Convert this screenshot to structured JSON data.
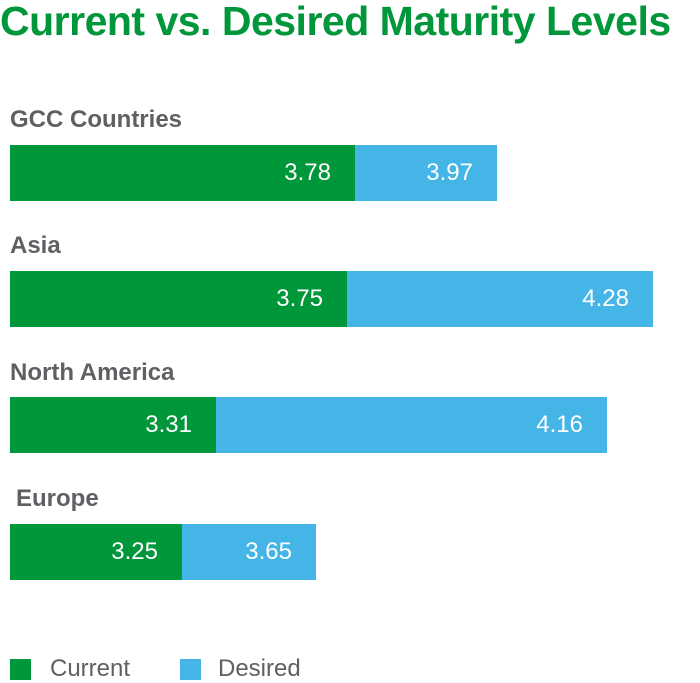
{
  "chart_data": {
    "type": "bar",
    "orientation": "horizontal",
    "stacked_display": true,
    "title": "Current vs. Desired Maturity Levels",
    "xlabel": "",
    "ylabel": "",
    "grid": false,
    "legend_position": "bottom-left",
    "categories": [
      "GCC Countries",
      "Asia",
      "North America",
      "Europe"
    ],
    "series": [
      {
        "name": "Current",
        "color": "#00963a",
        "values": [
          3.78,
          3.75,
          3.31,
          3.25
        ]
      },
      {
        "name": "Desired",
        "color": "#45b4e6",
        "values": [
          3.97,
          4.28,
          4.16,
          3.65
        ]
      }
    ],
    "data_labels": [
      [
        "3.78",
        "3.97"
      ],
      [
        "3.75",
        "4.28"
      ],
      [
        "3.31",
        "4.16"
      ],
      [
        "3.25",
        "3.65"
      ]
    ]
  }
}
